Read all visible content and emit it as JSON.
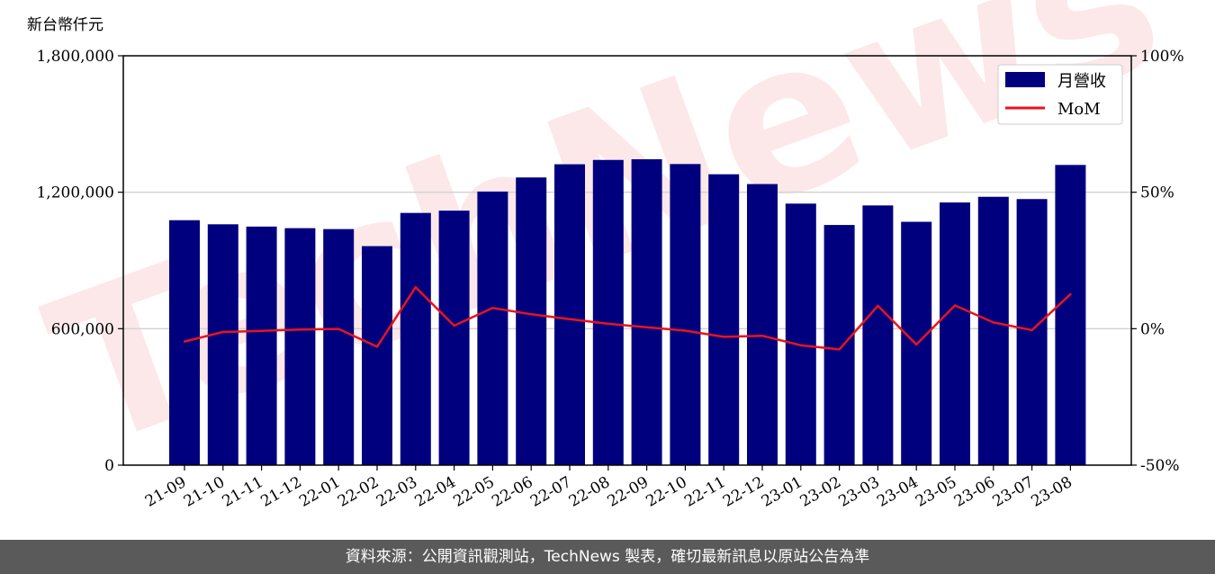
{
  "chart_data": {
    "type": "bar",
    "unit_label": "新台幣仟元",
    "categories": [
      "21-09",
      "21-10",
      "21-11",
      "21-12",
      "22-01",
      "22-02",
      "22-03",
      "22-04",
      "22-05",
      "22-06",
      "22-07",
      "22-08",
      "22-09",
      "22-10",
      "22-11",
      "22-12",
      "23-01",
      "23-02",
      "23-03",
      "23-04",
      "23-05",
      "23-06",
      "23-07",
      "23-08"
    ],
    "series": [
      {
        "name": "月營收",
        "kind": "bar",
        "axis": "left",
        "color": "#00007f",
        "values": [
          1077000,
          1059000,
          1049000,
          1042000,
          1038000,
          963000,
          1109000,
          1119000,
          1203000,
          1265000,
          1323000,
          1342000,
          1345000,
          1324000,
          1279000,
          1236000,
          1150000,
          1056000,
          1142000,
          1070000,
          1155000,
          1180000,
          1170000,
          1320000
        ]
      },
      {
        "name": "MoM",
        "kind": "line",
        "axis": "right",
        "color": "#e8141c",
        "values": [
          -4.7,
          -1.2,
          -0.8,
          -0.3,
          -0.1,
          -6.6,
          15.2,
          1.1,
          7.6,
          5.3,
          3.5,
          1.8,
          0.5,
          -0.7,
          -3.0,
          -2.6,
          -6.1,
          -7.6,
          8.4,
          -5.8,
          8.5,
          2.3,
          -0.5,
          12.6
        ]
      }
    ],
    "y_left": {
      "min": 0,
      "max": 1800000,
      "ticks": [
        0,
        600000,
        1200000,
        1800000
      ],
      "tick_labels": [
        "0",
        "600,000",
        "1,200,000",
        "1,800,000"
      ]
    },
    "y_right": {
      "min": -50,
      "max": 100,
      "ticks": [
        -50,
        0,
        50,
        100
      ],
      "tick_labels": [
        "-50%",
        "0%",
        "50%",
        "100%"
      ]
    },
    "grid": "horizontal",
    "legend_position": "top-right",
    "watermark": "TechNews"
  },
  "footer": {
    "text": "資料來源：公開資訊觀測站，TechNews 製表，確切最新訊息以原站公告為準"
  }
}
